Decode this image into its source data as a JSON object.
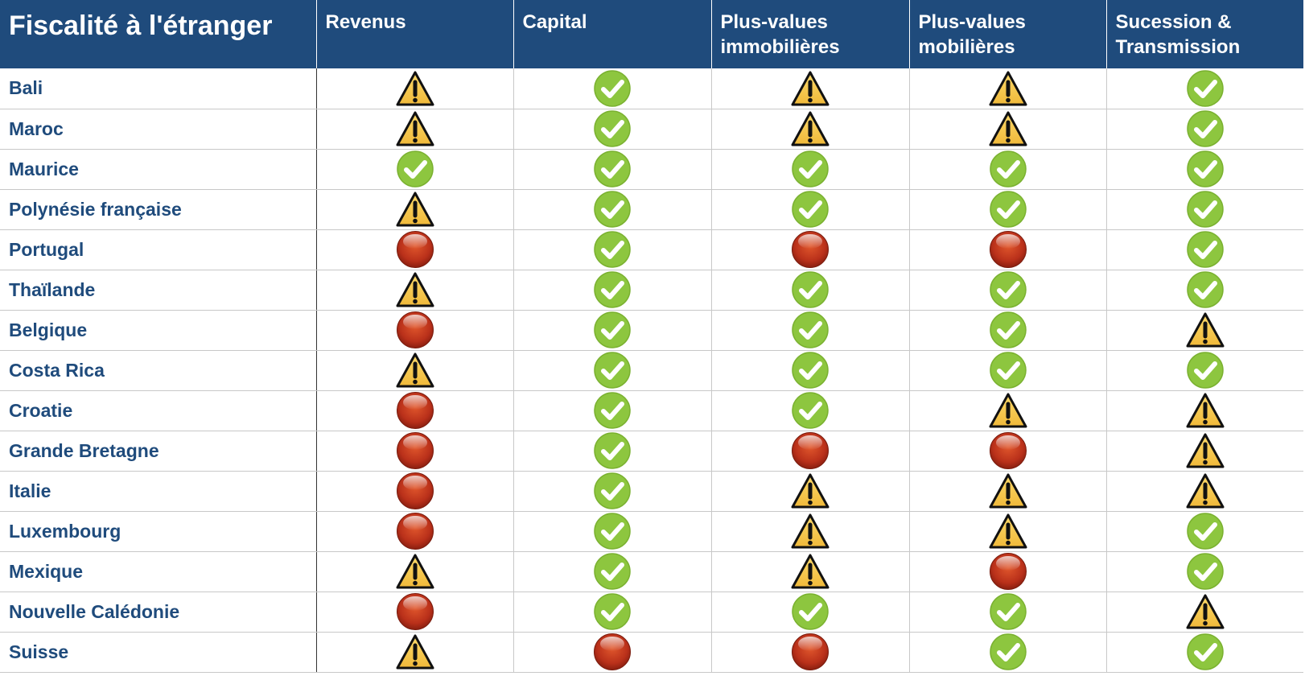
{
  "table": {
    "title": "Fiscalité à l'étranger",
    "columns": [
      "Revenus",
      "Capital",
      "Plus-values\nimmobilières",
      "Plus-values\nmobilières",
      "Sucession  &\nTransmission"
    ],
    "rows": [
      {
        "country": "Bali",
        "cells": [
          "warning",
          "ok",
          "warning",
          "warning",
          "ok"
        ]
      },
      {
        "country": "Maroc",
        "cells": [
          "warning",
          "ok",
          "warning",
          "warning",
          "ok"
        ]
      },
      {
        "country": "Maurice",
        "cells": [
          "ok",
          "ok",
          "ok",
          "ok",
          "ok"
        ]
      },
      {
        "country": "Polynésie française",
        "cells": [
          "warning",
          "ok",
          "ok",
          "ok",
          "ok"
        ]
      },
      {
        "country": "Portugal",
        "cells": [
          "bad",
          "ok",
          "bad",
          "bad",
          "ok"
        ]
      },
      {
        "country": "Thaïlande",
        "cells": [
          "warning",
          "ok",
          "ok",
          "ok",
          "ok"
        ]
      },
      {
        "country": "Belgique",
        "cells": [
          "bad",
          "ok",
          "ok",
          "ok",
          "warning"
        ]
      },
      {
        "country": "Costa Rica",
        "cells": [
          "warning",
          "ok",
          "ok",
          "ok",
          "ok"
        ]
      },
      {
        "country": "Croatie",
        "cells": [
          "bad",
          "ok",
          "ok",
          "warning",
          "warning"
        ]
      },
      {
        "country": "Grande Bretagne",
        "cells": [
          "bad",
          "ok",
          "bad",
          "bad",
          "warning"
        ]
      },
      {
        "country": "Italie",
        "cells": [
          "bad",
          "ok",
          "warning",
          "warning",
          "warning"
        ]
      },
      {
        "country": "Luxembourg",
        "cells": [
          "bad",
          "ok",
          "warning",
          "warning",
          "ok"
        ]
      },
      {
        "country": "Mexique",
        "cells": [
          "warning",
          "ok",
          "warning",
          "bad",
          "ok"
        ]
      },
      {
        "country": "Nouvelle Calédonie",
        "cells": [
          "bad",
          "ok",
          "ok",
          "ok",
          "warning"
        ]
      },
      {
        "country": "Suisse",
        "cells": [
          "warning",
          "bad",
          "bad",
          "ok",
          "ok"
        ]
      }
    ]
  }
}
